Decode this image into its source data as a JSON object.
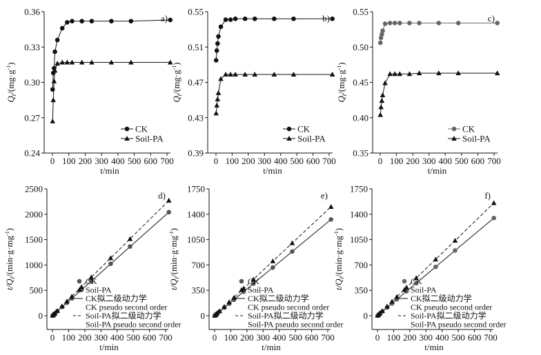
{
  "chart_data": [
    {
      "panel": "a)",
      "type": "line",
      "xlabel": "t/min",
      "ylabel": {
        "main": "Q",
        "sub": "t",
        "unit": "/(mg·g",
        "sup": "-1",
        "close": ")"
      },
      "xlim": [
        0,
        720
      ],
      "xticks": [
        0,
        100,
        200,
        300,
        400,
        500,
        600,
        700
      ],
      "ylim": [
        0.24,
        0.36
      ],
      "yticks": [
        "0.24",
        "0.27",
        "0.30",
        "0.33",
        "0.36"
      ],
      "x": [
        1,
        5,
        10,
        15,
        30,
        60,
        90,
        120,
        180,
        240,
        360,
        480,
        720
      ],
      "series": [
        {
          "name": "CK",
          "marker": "circle",
          "color": "#111111",
          "values": [
            0.294,
            0.308,
            0.312,
            0.326,
            0.336,
            0.346,
            0.351,
            0.352,
            0.352,
            0.352,
            0.352,
            0.352,
            0.353
          ]
        },
        {
          "name": "Soil-PA",
          "marker": "triangle",
          "color": "#111111",
          "values": [
            0.267,
            0.285,
            0.301,
            0.31,
            0.316,
            0.317,
            0.317,
            0.317,
            0.317,
            0.317,
            0.317,
            0.317,
            0.317
          ]
        }
      ],
      "legend": "bottom-right"
    },
    {
      "panel": "b)",
      "type": "line",
      "xlabel": "t/min",
      "ylabel": {
        "main": "Q",
        "sub": "t",
        "unit": "/(mg·g",
        "sup": "-1",
        "close": ")"
      },
      "xlim": [
        0,
        720
      ],
      "xticks": [
        0,
        100,
        200,
        300,
        400,
        500,
        600,
        700
      ],
      "ylim": [
        0.39,
        0.55
      ],
      "yticks": [
        "0.39",
        "0.43",
        "0.47",
        "0.51",
        "0.55"
      ],
      "x": [
        1,
        5,
        10,
        15,
        30,
        60,
        90,
        120,
        180,
        240,
        360,
        480,
        720
      ],
      "series": [
        {
          "name": "CK",
          "marker": "circle",
          "color": "#111111",
          "values": [
            0.495,
            0.506,
            0.514,
            0.522,
            0.533,
            0.541,
            0.541,
            0.542,
            0.542,
            0.542,
            0.542,
            0.542,
            0.542
          ]
        },
        {
          "name": "Soil-PA",
          "marker": "triangle",
          "color": "#111111",
          "values": [
            0.435,
            0.444,
            0.451,
            0.458,
            0.474,
            0.479,
            0.479,
            0.479,
            0.479,
            0.479,
            0.479,
            0.479,
            0.479
          ]
        }
      ],
      "legend": "bottom-right"
    },
    {
      "panel": "c)",
      "type": "line",
      "xlabel": "t/min",
      "ylabel": {
        "main": "Q",
        "sub": "t",
        "unit": "/(mg·g",
        "sup": "-1",
        "close": ")"
      },
      "xlim": [
        0,
        720
      ],
      "xticks": [
        0,
        100,
        200,
        300,
        400,
        500,
        600,
        700
      ],
      "ylim": [
        0.35,
        0.55
      ],
      "yticks": [
        "0.35",
        "0.40",
        "0.45",
        "0.50",
        "0.55"
      ],
      "x": [
        1,
        5,
        10,
        15,
        30,
        60,
        90,
        120,
        180,
        240,
        360,
        480,
        720
      ],
      "series": [
        {
          "name": "CK",
          "marker": "circle",
          "color": "#666666",
          "values": [
            0.506,
            0.513,
            0.518,
            0.523,
            0.533,
            0.534,
            0.534,
            0.534,
            0.534,
            0.534,
            0.534,
            0.534,
            0.534
          ]
        },
        {
          "name": "Soil-PA",
          "marker": "triangle",
          "color": "#111111",
          "values": [
            0.404,
            0.415,
            0.424,
            0.432,
            0.449,
            0.462,
            0.462,
            0.462,
            0.462,
            0.463,
            0.463,
            0.463,
            0.463
          ]
        }
      ],
      "legend": "bottom-right"
    },
    {
      "panel": "d)",
      "type": "scatter",
      "xlabel": "t/min",
      "ylabel": {
        "main": "t/Q",
        "sub": "t",
        "unit": "/(min·g·mg",
        "sup": "-1",
        "close": ")"
      },
      "xlim": [
        0,
        720
      ],
      "xticks": [
        0,
        100,
        200,
        300,
        400,
        500,
        600,
        700
      ],
      "ylim": [
        0,
        2500
      ],
      "yticks": [
        "0",
        "500",
        "1000",
        "1500",
        "2000",
        "2500"
      ],
      "x": [
        1,
        5,
        10,
        15,
        30,
        60,
        90,
        120,
        180,
        240,
        360,
        480,
        720
      ],
      "series": [
        {
          "name": "CK",
          "marker": "circle",
          "color": "#555555",
          "values": [
            3.4,
            16,
            32,
            46,
            89,
            173,
            256,
            341,
            511,
            682,
            1023,
            1364,
            2040
          ]
        },
        {
          "name": "Soil-PA",
          "marker": "triangle",
          "color": "#111111",
          "values": [
            3.7,
            17.5,
            33,
            48,
            95,
            189,
            284,
            379,
            568,
            757,
            1136,
            1514,
            2271
          ]
        }
      ],
      "fits": [
        {
          "name": "CK拟二级动力学",
          "name_en": "CK pseudo second order",
          "style": "solid",
          "slope": 2.832,
          "intercept": 1
        },
        {
          "name": "Soil-PA拟二级动力学",
          "name_en": "Soil-PA pseudo second order",
          "style": "dashed",
          "slope": 3.153,
          "intercept": 1
        }
      ],
      "legend": "bottom-center"
    },
    {
      "panel": "e)",
      "type": "scatter",
      "xlabel": "t/min",
      "ylabel": {
        "main": "t/Q",
        "sub": "t",
        "unit": "/(min·g·mg",
        "sup": "-1",
        "close": ")"
      },
      "xlim": [
        0,
        720
      ],
      "xticks": [
        0,
        100,
        200,
        300,
        400,
        500,
        600,
        700
      ],
      "ylim": [
        0,
        1750
      ],
      "yticks": [
        "0",
        "350",
        "700",
        "1050",
        "1400",
        "1750"
      ],
      "x": [
        1,
        5,
        10,
        15,
        30,
        60,
        90,
        120,
        180,
        240,
        360,
        480,
        720
      ],
      "series": [
        {
          "name": "CK",
          "marker": "circle",
          "color": "#555555",
          "values": [
            2.0,
            9.9,
            19.5,
            28.7,
            56.3,
            111,
            166,
            221,
            332,
            443,
            664,
            886,
            1328
          ]
        },
        {
          "name": "Soil-PA",
          "marker": "triangle",
          "color": "#111111",
          "values": [
            2.3,
            11.3,
            22.2,
            32.8,
            63.3,
            125,
            188,
            251,
            376,
            501,
            752,
            1002,
            1503
          ]
        }
      ],
      "fits": [
        {
          "name": "CK拟二级动力学",
          "name_en": "CK pseudo second order",
          "style": "solid",
          "slope": 1.844,
          "intercept": 0.5
        },
        {
          "name": "Soil-PA拟二级动力学",
          "name_en": "Soil-PA pseudo second order",
          "style": "dashed",
          "slope": 2.087,
          "intercept": 0.5
        }
      ],
      "legend": "bottom-center"
    },
    {
      "panel": "f)",
      "type": "scatter",
      "xlabel": "t/min",
      "ylabel": {
        "main": "t/Q",
        "sub": "t",
        "unit": "/(min·g·mg",
        "sup": "-1",
        "close": ")"
      },
      "xlim": [
        0,
        720
      ],
      "xticks": [
        0,
        100,
        200,
        300,
        400,
        500,
        600,
        700
      ],
      "ylim": [
        0,
        1750
      ],
      "yticks": [
        "0",
        "350",
        "700",
        "1050",
        "1400",
        "1750"
      ],
      "x": [
        1,
        5,
        10,
        15,
        30,
        60,
        90,
        120,
        180,
        240,
        360,
        480,
        720
      ],
      "series": [
        {
          "name": "CK",
          "marker": "circle",
          "color": "#666666",
          "values": [
            2.0,
            9.7,
            19.3,
            28.7,
            56.3,
            112,
            169,
            225,
            337,
            449,
            674,
            899,
            1348
          ]
        },
        {
          "name": "Soil-PA",
          "marker": "triangle",
          "color": "#111111",
          "values": [
            2.5,
            12,
            23.6,
            34.7,
            66.8,
            130,
            195,
            260,
            390,
            519,
            778,
            1037,
            1555
          ]
        }
      ],
      "fits": [
        {
          "name": "CK拟二级动力学",
          "name_en": "CK pseudo second order",
          "style": "solid",
          "slope": 1.872,
          "intercept": 0.5
        },
        {
          "name": "Soil-PA拟二级动力学",
          "name_en": "Soil-PA pseudo second order",
          "style": "dashed",
          "slope": 2.159,
          "intercept": 0.5
        }
      ],
      "legend": "bottom-center"
    }
  ]
}
